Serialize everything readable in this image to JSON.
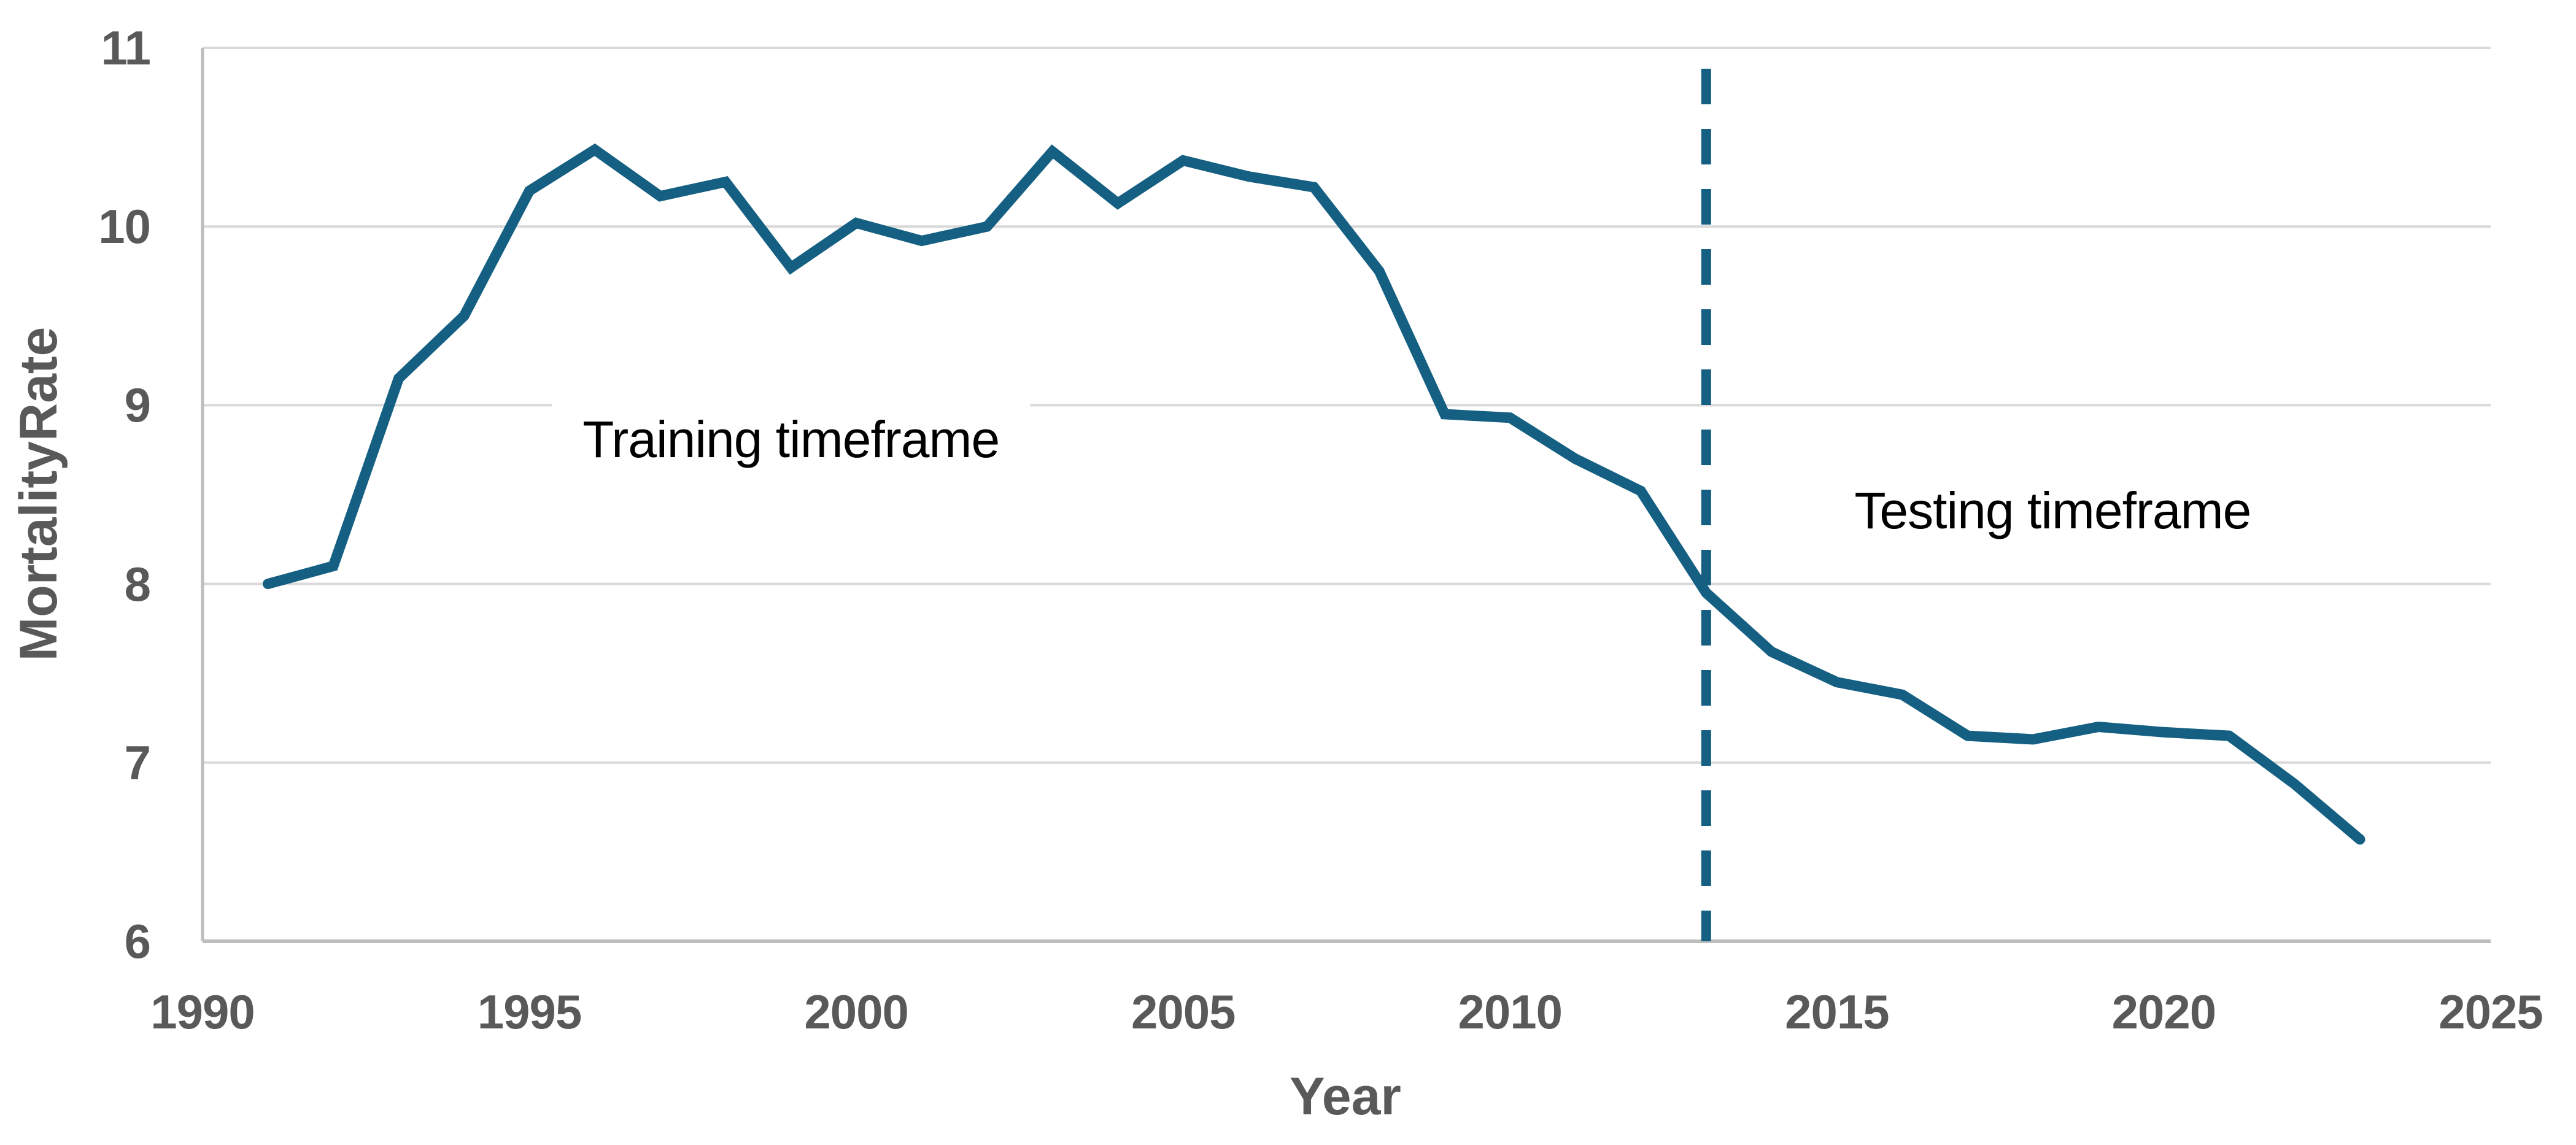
{
  "chart_data": {
    "type": "line",
    "title": "",
    "xlabel": "Year",
    "ylabel": "MortalityRate",
    "xlim": [
      1990,
      2025
    ],
    "ylim": [
      6,
      11
    ],
    "x_ticks": [
      1990,
      1995,
      2000,
      2005,
      2010,
      2015,
      2020,
      2025
    ],
    "y_ticks": [
      6,
      7,
      8,
      9,
      10,
      11
    ],
    "grid": "horizontal",
    "legend": "none",
    "series": [
      {
        "name": "MortalityRate",
        "color": "#156082",
        "x": [
          1991,
          1992,
          1993,
          1994,
          1995,
          1996,
          1997,
          1998,
          1999,
          2000,
          2001,
          2002,
          2003,
          2004,
          2005,
          2006,
          2007,
          2008,
          2009,
          2010,
          2011,
          2012,
          2013,
          2014,
          2015,
          2016,
          2017,
          2018,
          2019,
          2020,
          2021,
          2022,
          2023
        ],
        "values": [
          8.0,
          8.1,
          9.15,
          9.5,
          10.2,
          10.43,
          10.17,
          10.25,
          9.77,
          10.02,
          9.92,
          10.0,
          10.42,
          10.13,
          10.37,
          10.28,
          10.22,
          9.75,
          8.95,
          8.93,
          8.7,
          8.52,
          7.95,
          7.62,
          7.45,
          7.38,
          7.15,
          7.13,
          7.2,
          7.17,
          7.15,
          6.88,
          6.57
        ]
      }
    ],
    "divider": {
      "x": 2013,
      "style": "dashed",
      "color": "#156082"
    },
    "annotations": [
      {
        "id": "training",
        "label": "Training timeframe",
        "x": 1999.0,
        "y": 8.81
      },
      {
        "id": "testing",
        "label": "Testing timeframe",
        "x": 2018.3,
        "y": 8.41
      }
    ]
  },
  "colors": {
    "line": "#156082",
    "gridline": "#D9D9D9",
    "axis": "#BDBDBD",
    "tick_text": "#595959",
    "annotation_text": "#000000",
    "background": "#FFFFFF"
  }
}
